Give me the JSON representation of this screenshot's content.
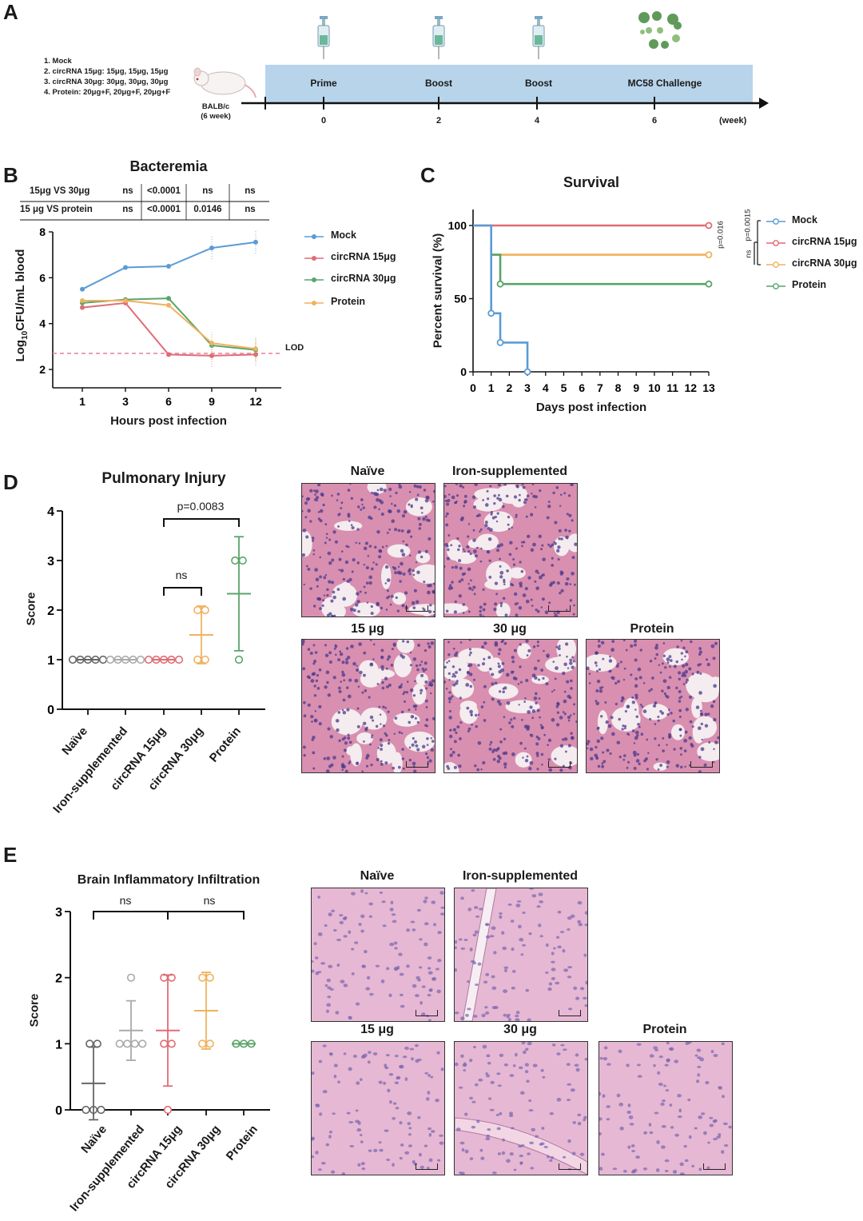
{
  "panelA": {
    "letter": "A",
    "groups": [
      "1. Mock",
      "2. circRNA 15μg: 15μg, 15μg, 15μg",
      "3. circRNA 30μg: 30μg, 30μg, 30μg",
      "4. Protein: 20μg+F, 20μg+F, 20μg+F"
    ],
    "mouse_label_1": "BALB/c",
    "mouse_label_2": "(6 week)",
    "stages": [
      "Prime",
      "Boost",
      "Boost",
      "MC58 Challenge"
    ],
    "weeks": [
      "0",
      "2",
      "4",
      "6"
    ],
    "unit": "(week)"
  },
  "panelB": {
    "letter": "B",
    "title": "Bacteremia",
    "stats_rows": [
      {
        "label": "15μg VS 30μg",
        "cells": [
          "ns",
          "<0.0001",
          "ns",
          "ns"
        ]
      },
      {
        "label": "15 μg VS protein",
        "cells": [
          "ns",
          "<0.0001",
          "0.0146",
          "ns"
        ]
      }
    ],
    "lod_label": "LOD",
    "legend": [
      "Mock",
      "circRNA 15μg",
      "circRNA 30μg",
      "Protein"
    ],
    "ylabel_pre": "Log",
    "ylabel_sub": "10",
    "ylabel_post": "CFU/mL blood",
    "xlabel": "Hours post infection"
  },
  "panelC": {
    "letter": "C",
    "title": "Survival",
    "ylabel": "Percent survival (%)",
    "xlabel": "Days post infection",
    "legend": [
      "Mock",
      "circRNA 15μg",
      "circRNA 30μg",
      "Protein"
    ],
    "pvals": [
      "p=0.016",
      "p=0.0015",
      "ns"
    ]
  },
  "panelD": {
    "letter": "D",
    "title": "Pulmonary Injury",
    "ylabel": "Score",
    "categories": [
      "Naïve",
      "Iron-supplemented",
      "circRNA 15μg",
      "circRNA 30μg",
      "Protein"
    ],
    "pval": "p=0.0083",
    "ns": "ns",
    "image_titles": [
      "Naïve",
      "Iron-supplemented",
      "15 μg",
      "30 μg",
      "Protein"
    ]
  },
  "panelE": {
    "letter": "E",
    "title": "Brain Inflammatory Infiltration",
    "ylabel": "Score",
    "categories": [
      "Naïve",
      "Iron-supplemented",
      "circRNA 15μg",
      "circRNA 30μg",
      "Protein"
    ],
    "ns": "ns",
    "image_titles": [
      "Naïve",
      "Iron-supplemented",
      "15 μg",
      "30 μg",
      "Protein"
    ]
  },
  "colors": {
    "mock": "#5b9bd5",
    "c15": "#e06c75",
    "c30": "#5aa469",
    "protein": "#f0b25e",
    "naive": "#666666",
    "iron": "#aaaaaa",
    "timeline": "#b7d4ea",
    "lod": "#e58aa6"
  },
  "chart_data": [
    {
      "type": "line",
      "title": "Bacteremia",
      "xlabel": "Hours post infection",
      "ylabel": "Log10CFU/mL blood",
      "x": [
        1,
        3,
        6,
        9,
        12
      ],
      "ylim": [
        1.2,
        8
      ],
      "yticks": [
        2,
        4,
        6,
        8
      ],
      "lod": 2.7,
      "series": [
        {
          "name": "Mock",
          "values": [
            5.5,
            6.45,
            6.5,
            7.3,
            7.55
          ]
        },
        {
          "name": "circRNA 15μg",
          "values": [
            4.7,
            4.9,
            2.65,
            2.6,
            2.65
          ]
        },
        {
          "name": "circRNA 30μg",
          "values": [
            4.9,
            5.05,
            5.1,
            3.05,
            2.85
          ]
        },
        {
          "name": "Protein",
          "values": [
            5.0,
            5.0,
            4.8,
            3.15,
            2.9
          ]
        }
      ],
      "legend_position": "right"
    },
    {
      "type": "line",
      "title": "Survival",
      "xlabel": "Days post infection",
      "ylabel": "Percent survival (%)",
      "xlim": [
        0,
        13
      ],
      "ylim": [
        0,
        100
      ],
      "yticks": [
        0,
        50,
        100
      ],
      "series": [
        {
          "name": "Mock",
          "steps": [
            [
              0,
              100
            ],
            [
              1,
              100
            ],
            [
              1,
              40
            ],
            [
              1.5,
              40
            ],
            [
              1.5,
              20
            ],
            [
              3,
              20
            ],
            [
              3,
              0
            ]
          ],
          "markers": [
            [
              1,
              40
            ],
            [
              1.5,
              20
            ],
            [
              3,
              0
            ]
          ]
        },
        {
          "name": "circRNA 15μg",
          "steps": [
            [
              0,
              100
            ],
            [
              13,
              100
            ]
          ],
          "markers": [
            [
              13,
              100
            ]
          ]
        },
        {
          "name": "circRNA 30μg",
          "steps": [
            [
              1,
              80
            ],
            [
              13,
              80
            ]
          ],
          "markers": [
            [
              13,
              80
            ]
          ]
        },
        {
          "name": "Protein",
          "steps": [
            [
              1,
              80
            ],
            [
              1.5,
              80
            ],
            [
              1.5,
              60
            ],
            [
              13,
              60
            ]
          ],
          "markers": [
            [
              1.5,
              60
            ],
            [
              13,
              60
            ]
          ]
        }
      ],
      "legend_position": "right"
    },
    {
      "type": "scatter",
      "title": "Pulmonary Injury",
      "ylabel": "Score",
      "categories": [
        "Naïve",
        "Iron-supplemented",
        "circRNA 15μg",
        "circRNA 30μg",
        "Protein"
      ],
      "ylim": [
        0,
        4
      ],
      "yticks": [
        0,
        1,
        2,
        3,
        4
      ],
      "groups": [
        {
          "points": [
            1,
            1,
            1,
            1,
            1
          ],
          "mean": 1,
          "sd": 0
        },
        {
          "points": [
            1,
            1,
            1,
            1,
            1
          ],
          "mean": 1,
          "sd": 0
        },
        {
          "points": [
            1,
            1,
            1,
            1,
            1
          ],
          "mean": 1,
          "sd": 0
        },
        {
          "points": [
            2,
            2,
            1,
            1
          ],
          "mean": 1.5,
          "sd": 0.58
        },
        {
          "points": [
            3,
            3,
            1
          ],
          "mean": 2.33,
          "sd": 1.15
        }
      ]
    },
    {
      "type": "scatter",
      "title": "Brain Inflammatory Infiltration",
      "ylabel": "Score",
      "categories": [
        "Naïve",
        "Iron-supplemented",
        "circRNA 15μg",
        "circRNA 30μg",
        "Protein"
      ],
      "ylim": [
        0,
        3
      ],
      "yticks": [
        0,
        1,
        2,
        3
      ],
      "groups": [
        {
          "points": [
            1,
            1,
            0,
            0,
            0
          ],
          "mean": 0.4,
          "sd": 0.55
        },
        {
          "points": [
            2,
            1,
            1,
            1,
            1
          ],
          "mean": 1.2,
          "sd": 0.45
        },
        {
          "points": [
            2,
            2,
            1,
            1,
            0
          ],
          "mean": 1.2,
          "sd": 0.84
        },
        {
          "points": [
            2,
            2,
            1,
            1
          ],
          "mean": 1.5,
          "sd": 0.58
        },
        {
          "points": [
            1,
            1,
            1
          ],
          "mean": 1,
          "sd": 0
        }
      ]
    }
  ]
}
